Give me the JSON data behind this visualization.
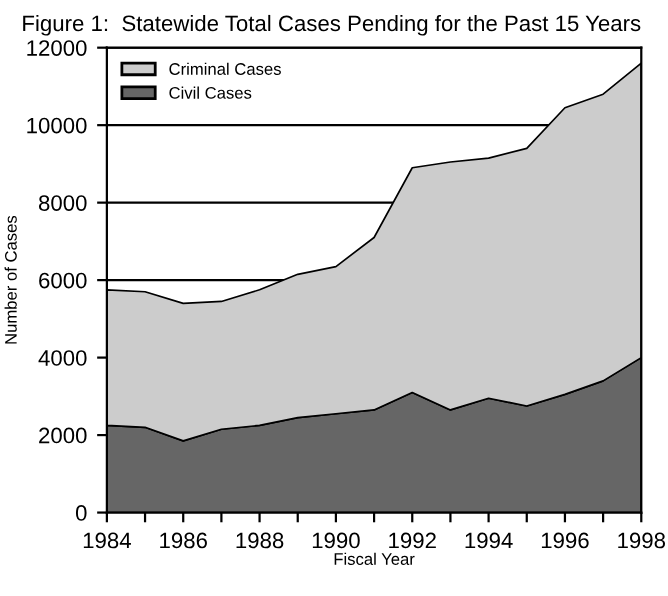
{
  "chart_data": {
    "type": "area",
    "title": "Figure 1:  Statewide Total Cases Pending for the Past 15 Years",
    "xlabel": "Fiscal Year",
    "ylabel": "Number of Cases",
    "stacked": true,
    "x": [
      1984,
      1985,
      1986,
      1987,
      1988,
      1989,
      1990,
      1991,
      1992,
      1993,
      1994,
      1995,
      1996,
      1997,
      1998
    ],
    "series": [
      {
        "name": "Civil Cases",
        "color": "#666666",
        "values": [
          2250,
          2200,
          1850,
          2150,
          2250,
          2450,
          2550,
          2650,
          3100,
          2650,
          2950,
          2750,
          3050,
          3400,
          4000
        ]
      },
      {
        "name": "Criminal Cases",
        "color": "#cccccc",
        "values": [
          3500,
          3500,
          3550,
          3300,
          3500,
          3700,
          3800,
          4450,
          5800,
          6400,
          6200,
          6650,
          7400,
          7400,
          7600
        ]
      }
    ],
    "xlim": [
      1984,
      1998
    ],
    "xticks": [
      1984,
      {
        "value": 1985,
        "label": null
      },
      1986,
      {
        "value": 1987,
        "label": null
      },
      1988,
      {
        "value": 1989,
        "label": null
      },
      1990,
      {
        "value": 1991,
        "label": null
      },
      1992,
      {
        "value": 1993,
        "label": null
      },
      1994,
      {
        "value": 1995,
        "label": null
      },
      1996,
      {
        "value": 1997,
        "label": null
      },
      1998
    ],
    "ylim": [
      0,
      12000
    ],
    "yticks": [
      0,
      2000,
      4000,
      6000,
      8000,
      10000,
      12000
    ],
    "grid": "y",
    "legend": "top left"
  }
}
